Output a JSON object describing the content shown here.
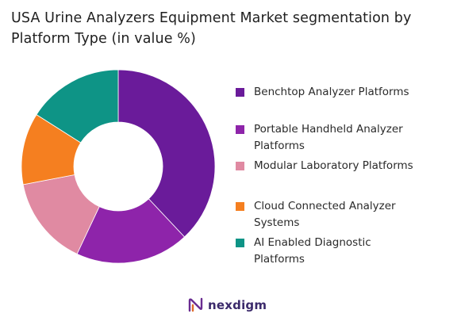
{
  "chart_data": {
    "type": "pie",
    "variant": "donut",
    "title": "USA Urine Analyzers Equipment Market segmentation by Platform Type (in value %)",
    "categories": [
      "Benchtop Analyzer Platforms",
      "Portable Handheld Analyzer Platforms",
      "Modular Laboratory Platforms",
      "Cloud Connected Analyzer Systems",
      "AI Enabled Diagnostic Platforms"
    ],
    "values": [
      38,
      19,
      15,
      12,
      16
    ],
    "colors": [
      "#6a1b9a",
      "#8e24aa",
      "#e08aa2",
      "#f57f20",
      "#0e9486"
    ],
    "legend_position": "right"
  },
  "brand": {
    "name": "nexdigm",
    "icon": "nexdigm-logo-icon"
  }
}
